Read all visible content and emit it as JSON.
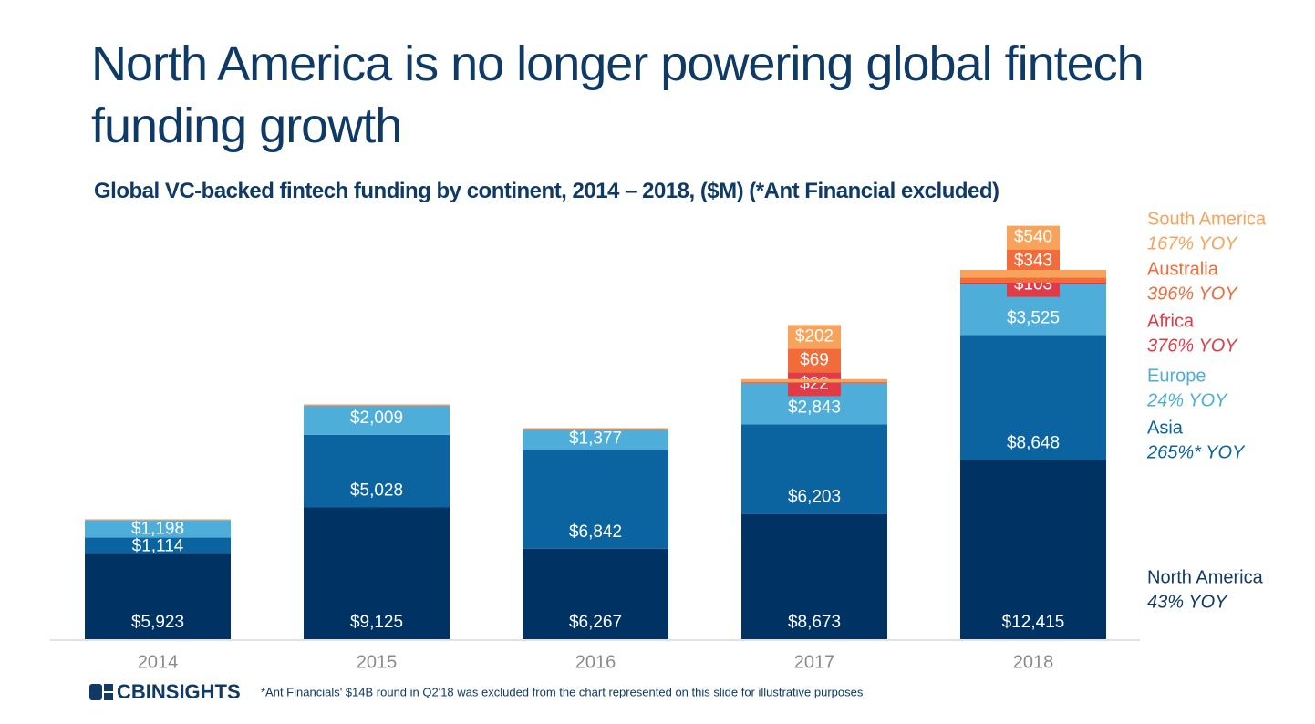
{
  "chart_data": {
    "type": "bar",
    "stacked": true,
    "title": "North America is no longer powering global fintech funding growth",
    "subtitle": "Global VC-backed fintech funding by continent, 2014 – 2018, ($M) (*Ant Financial excluded)",
    "categories": [
      "2014",
      "2015",
      "2016",
      "2017",
      "2018"
    ],
    "series": [
      {
        "name": "North America",
        "note": "43% YOY",
        "color": "#003263",
        "values": [
          5923,
          9125,
          6267,
          8673,
          12415
        ],
        "value_labels": [
          "$5,923",
          "$9,125",
          "$6,267",
          "$8,673",
          "$12,415"
        ]
      },
      {
        "name": "Asia",
        "note": "265%* YOY",
        "color": "#0b63a0",
        "values": [
          1114,
          5028,
          6842,
          6203,
          8648
        ],
        "value_labels": [
          "$1,114",
          "$5,028",
          "$6,842",
          "$6,203",
          "$8,648"
        ]
      },
      {
        "name": "Europe",
        "note": "24% YOY",
        "color": "#4eaed9",
        "values": [
          1198,
          2009,
          1377,
          2843,
          3525
        ],
        "value_labels": [
          "$1,198",
          "$2,009",
          "$1,377",
          "$2,843",
          "$3,525"
        ]
      },
      {
        "name": "Africa",
        "note": "376% YOY",
        "color": "#e23b48",
        "values": [
          5,
          10,
          15,
          22,
          103
        ],
        "value_labels": [
          null,
          null,
          null,
          "$22",
          "$103"
        ]
      },
      {
        "name": "Australia",
        "note": "396% YOY",
        "color": "#f26b3a",
        "values": [
          20,
          30,
          30,
          69,
          343
        ],
        "value_labels": [
          null,
          null,
          null,
          "$69",
          "$343"
        ]
      },
      {
        "name": "South America",
        "note": "167% YOY",
        "color": "#f7a35c",
        "values": [
          50,
          60,
          90,
          202,
          540
        ],
        "value_labels": [
          null,
          null,
          null,
          "$202",
          "$540"
        ]
      }
    ],
    "footnote": "*Ant Financials' $14B round in Q2'18 was excluded from the chart represented on this slide for illustrative purposes",
    "logo": "CBINSIGHTS"
  }
}
